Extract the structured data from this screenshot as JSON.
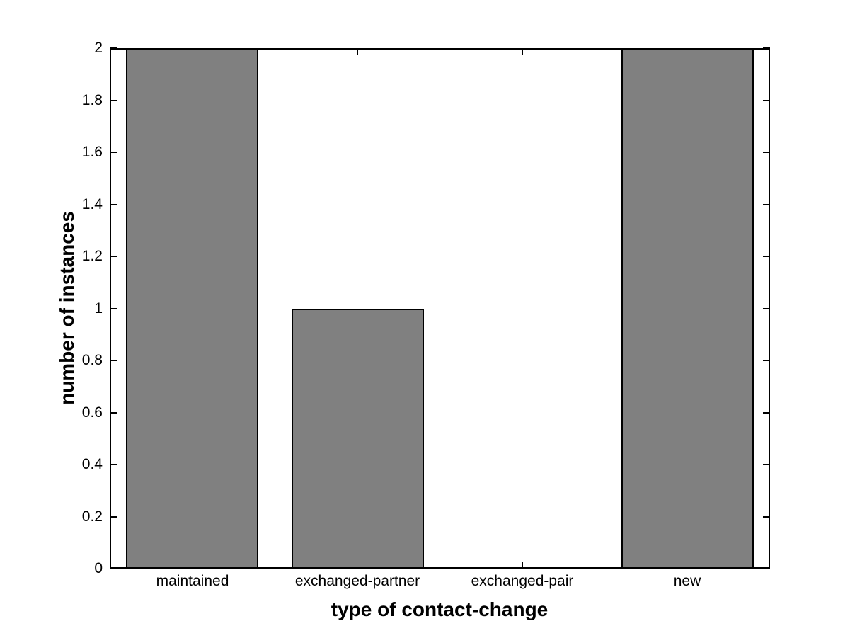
{
  "figure": {
    "background": "#ffffff"
  },
  "chart_data": {
    "type": "bar",
    "title": "",
    "xlabel": "type of contact-change",
    "ylabel": "number of instances",
    "categories": [
      "maintained",
      "exchanged-partner",
      "exchanged-pair",
      "new"
    ],
    "values": [
      2,
      1,
      0,
      2
    ],
    "xtick_positions": [
      1,
      2,
      3,
      4
    ],
    "yticks": [
      0,
      0.2,
      0.4,
      0.6,
      0.8,
      1,
      1.2,
      1.4,
      1.6,
      1.8,
      2
    ],
    "ytick_labels": [
      "0",
      "0.2",
      "0.4",
      "0.6",
      "0.8",
      "1",
      "1.2",
      "1.4",
      "1.6",
      "1.8",
      "2"
    ],
    "xlim": [
      0.5,
      4.5
    ],
    "ylim": [
      0,
      2
    ],
    "bar_width": 0.8,
    "bar_color": "#808080",
    "bar_edge_color": "#000000",
    "axis_color": "#000000",
    "text_color": "#000000",
    "grid": "off",
    "legend": "none",
    "tick_direction": "in"
  }
}
